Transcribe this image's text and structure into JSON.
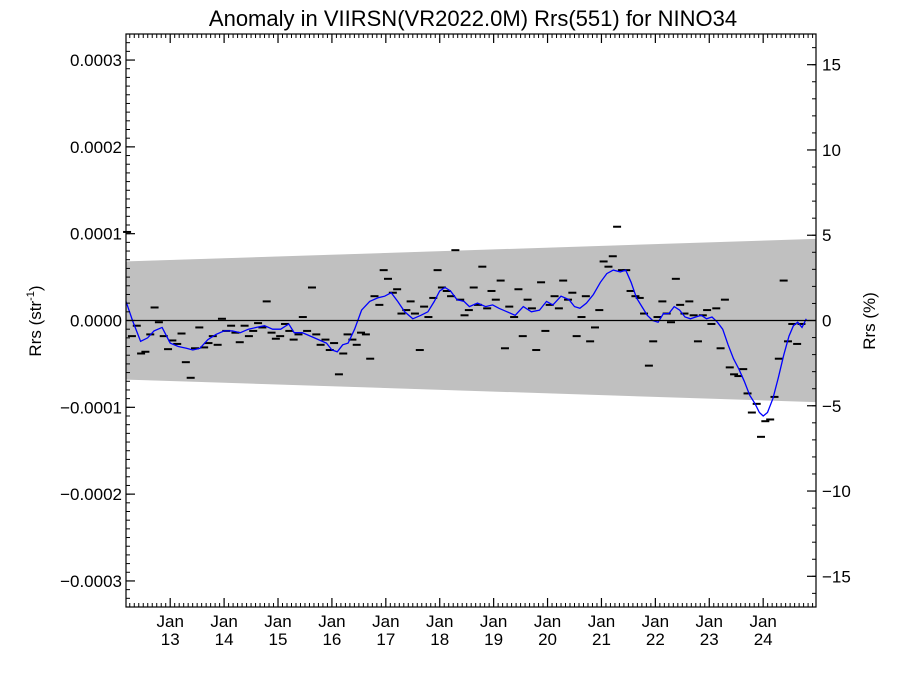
{
  "chart_data": {
    "type": "scatter",
    "title": "Anomaly in VIIRSN(VR2022.0M) Rrs(551) for NINO34",
    "ylabel_left": "Rrs (str",
    "ylabel_left_sup": "-1",
    "ylabel_left_tail": ")",
    "ylabel_right": "Rrs (%)",
    "ylim": [
      -0.00033,
      0.00033
    ],
    "y2lim": [
      -16.8,
      16.8
    ],
    "xlim": [
      2012.18,
      2024.98
    ],
    "yticks": [
      {
        "v": 0.0003,
        "label": "0.0003"
      },
      {
        "v": 0.0002,
        "label": "0.0002"
      },
      {
        "v": 0.0001,
        "label": "0.0001"
      },
      {
        "v": 0.0,
        "label": "0.0000"
      },
      {
        "v": -0.0001,
        "label": "−0.0001"
      },
      {
        "v": -0.0002,
        "label": "−0.0002"
      },
      {
        "v": -0.0003,
        "label": "−0.0003"
      }
    ],
    "y2ticks": [
      {
        "v": 15,
        "label": "15"
      },
      {
        "v": 10,
        "label": "10"
      },
      {
        "v": 5,
        "label": "5"
      },
      {
        "v": 0,
        "label": "0"
      },
      {
        "v": -5,
        "label": "−5"
      },
      {
        "v": -10,
        "label": "−10"
      },
      {
        "v": -15,
        "label": "−15"
      }
    ],
    "xticks": [
      {
        "v": 2013,
        "top": "Jan",
        "bottom": "13"
      },
      {
        "v": 2014,
        "top": "Jan",
        "bottom": "14"
      },
      {
        "v": 2015,
        "top": "Jan",
        "bottom": "15"
      },
      {
        "v": 2016,
        "top": "Jan",
        "bottom": "16"
      },
      {
        "v": 2017,
        "top": "Jan",
        "bottom": "17"
      },
      {
        "v": 2018,
        "top": "Jan",
        "bottom": "18"
      },
      {
        "v": 2019,
        "top": "Jan",
        "bottom": "19"
      },
      {
        "v": 2020,
        "top": "Jan",
        "bottom": "20"
      },
      {
        "v": 2021,
        "top": "Jan",
        "bottom": "21"
      },
      {
        "v": 2022,
        "top": "Jan",
        "bottom": "22"
      },
      {
        "v": 2023,
        "top": "Jan",
        "bottom": "23"
      },
      {
        "v": 2024,
        "top": "Jan",
        "bottom": "24"
      }
    ],
    "band": {
      "color": "#c0c0c0",
      "x": [
        2012.18,
        2024.98
      ],
      "upper": [
        6.8e-05,
        9.4e-05
      ],
      "lower": [
        -6.8e-05,
        -9.4e-05
      ]
    },
    "zero_line": 0,
    "points": [
      [
        2012.2,
        0.000102
      ],
      [
        2012.29,
        -1.8e-05
      ],
      [
        2012.38,
        -6e-06
      ],
      [
        2012.46,
        -3.8e-05
      ],
      [
        2012.54,
        -3.6e-05
      ],
      [
        2012.63,
        -1.6e-05
      ],
      [
        2012.71,
        1.5e-05
      ],
      [
        2012.79,
        -2e-06
      ],
      [
        2012.88,
        -1.8e-05
      ],
      [
        2012.96,
        -3.3e-05
      ],
      [
        2013.04,
        -2.3e-05
      ],
      [
        2013.13,
        -2.7e-05
      ],
      [
        2013.21,
        -1.5e-05
      ],
      [
        2013.29,
        -4.8e-05
      ],
      [
        2013.38,
        -6.6e-05
      ],
      [
        2013.46,
        -3.2e-05
      ],
      [
        2013.54,
        -8e-06
      ],
      [
        2013.63,
        -3.1e-05
      ],
      [
        2013.71,
        -2.6e-05
      ],
      [
        2013.79,
        -1.8e-05
      ],
      [
        2013.88,
        -2.8e-05
      ],
      [
        2013.96,
        2e-06
      ],
      [
        2014.04,
        -1.2e-05
      ],
      [
        2014.13,
        -6e-06
      ],
      [
        2014.21,
        -1.4e-05
      ],
      [
        2014.29,
        -2.5e-05
      ],
      [
        2014.38,
        -6e-06
      ],
      [
        2014.46,
        -1.8e-05
      ],
      [
        2014.54,
        -1.2e-05
      ],
      [
        2014.63,
        -3e-06
      ],
      [
        2014.71,
        -8e-06
      ],
      [
        2014.79,
        2.2e-05
      ],
      [
        2014.88,
        -1.4e-05
      ],
      [
        2014.96,
        -2.1e-05
      ],
      [
        2015.04,
        -1.8e-05
      ],
      [
        2015.13,
        -4e-06
      ],
      [
        2015.21,
        -1.2e-05
      ],
      [
        2015.29,
        -2.2e-05
      ],
      [
        2015.38,
        -1.6e-05
      ],
      [
        2015.46,
        4e-06
      ],
      [
        2015.54,
        -1.2e-05
      ],
      [
        2015.63,
        3.8e-05
      ],
      [
        2015.71,
        -1.6e-05
      ],
      [
        2015.79,
        -2.8e-05
      ],
      [
        2015.88,
        -2.2e-05
      ],
      [
        2015.96,
        -3.4e-05
      ],
      [
        2016.04,
        -2.6e-05
      ],
      [
        2016.13,
        -6.2e-05
      ],
      [
        2016.21,
        -3.8e-05
      ],
      [
        2016.29,
        -1.6e-05
      ],
      [
        2016.38,
        -2.2e-05
      ],
      [
        2016.46,
        -2.8e-05
      ],
      [
        2016.54,
        -1.4e-05
      ],
      [
        2016.63,
        -1.6e-05
      ],
      [
        2016.71,
        -4.4e-05
      ],
      [
        2016.79,
        2.8e-05
      ],
      [
        2016.88,
        1.8e-05
      ],
      [
        2016.96,
        5.8e-05
      ],
      [
        2017.04,
        4.8e-05
      ],
      [
        2017.13,
        3.2e-05
      ],
      [
        2017.21,
        3.6e-05
      ],
      [
        2017.29,
        8e-06
      ],
      [
        2017.38,
        1.2e-05
      ],
      [
        2017.46,
        2.2e-05
      ],
      [
        2017.54,
        8e-06
      ],
      [
        2017.63,
        -3.4e-05
      ],
      [
        2017.71,
        1.6e-05
      ],
      [
        2017.79,
        4e-06
      ],
      [
        2017.88,
        2.6e-05
      ],
      [
        2017.96,
        5.8e-05
      ],
      [
        2018.04,
        3.8e-05
      ],
      [
        2018.13,
        3.4e-05
      ],
      [
        2018.21,
        2.8e-05
      ],
      [
        2018.29,
        8.1e-05
      ],
      [
        2018.38,
        2.4e-05
      ],
      [
        2018.46,
        6e-06
      ],
      [
        2018.54,
        1.2e-05
      ],
      [
        2018.63,
        3.8e-05
      ],
      [
        2018.71,
        1.8e-05
      ],
      [
        2018.79,
        6.2e-05
      ],
      [
        2018.88,
        1.4e-05
      ],
      [
        2018.96,
        3.4e-05
      ],
      [
        2019.04,
        2.4e-05
      ],
      [
        2019.13,
        4.6e-05
      ],
      [
        2019.21,
        -3.2e-05
      ],
      [
        2019.29,
        1.6e-05
      ],
      [
        2019.38,
        4e-06
      ],
      [
        2019.46,
        3.6e-05
      ],
      [
        2019.54,
        -1.8e-05
      ],
      [
        2019.63,
        2.4e-05
      ],
      [
        2019.71,
        1.4e-05
      ],
      [
        2019.79,
        -3.4e-05
      ],
      [
        2019.88,
        4.4e-05
      ],
      [
        2019.96,
        -1.2e-05
      ],
      [
        2020.04,
        1.8e-05
      ],
      [
        2020.13,
        2.8e-05
      ],
      [
        2020.21,
        1.4e-05
      ],
      [
        2020.29,
        4.6e-05
      ],
      [
        2020.38,
        2.4e-05
      ],
      [
        2020.46,
        3.2e-05
      ],
      [
        2020.54,
        -1.8e-05
      ],
      [
        2020.63,
        4e-06
      ],
      [
        2020.71,
        2.8e-05
      ],
      [
        2020.79,
        -2.4e-05
      ],
      [
        2020.88,
        -8e-06
      ],
      [
        2020.96,
        1.2e-05
      ],
      [
        2021.04,
        6.8e-05
      ],
      [
        2021.13,
        6.2e-05
      ],
      [
        2021.21,
        7.4e-05
      ],
      [
        2021.29,
        0.000108
      ],
      [
        2021.38,
        5.8e-05
      ],
      [
        2021.46,
        5.8e-05
      ],
      [
        2021.54,
        3.4e-05
      ],
      [
        2021.63,
        2.8e-05
      ],
      [
        2021.71,
        2.6e-05
      ],
      [
        2021.79,
        8e-06
      ],
      [
        2021.88,
        -5.2e-05
      ],
      [
        2021.96,
        -2.4e-05
      ],
      [
        2022.04,
        4e-06
      ],
      [
        2022.13,
        2.2e-05
      ],
      [
        2022.21,
        8e-06
      ],
      [
        2022.29,
        -2e-06
      ],
      [
        2022.38,
        4.8e-05
      ],
      [
        2022.46,
        1.8e-05
      ],
      [
        2022.54,
        8e-06
      ],
      [
        2022.63,
        2.2e-05
      ],
      [
        2022.71,
        6e-06
      ],
      [
        2022.79,
        -2.4e-05
      ],
      [
        2022.88,
        6e-06
      ],
      [
        2022.96,
        1.2e-05
      ],
      [
        2023.04,
        -4e-06
      ],
      [
        2023.13,
        1.4e-05
      ],
      [
        2023.21,
        -3.2e-05
      ],
      [
        2023.29,
        2.4e-05
      ],
      [
        2023.38,
        -5.4e-05
      ],
      [
        2023.46,
        -6.2e-05
      ],
      [
        2023.54,
        -6.4e-05
      ],
      [
        2023.63,
        -5.6e-05
      ],
      [
        2023.71,
        -8.4e-05
      ],
      [
        2023.79,
        -0.000106
      ],
      [
        2023.88,
        -9.6e-05
      ],
      [
        2023.96,
        -0.000134
      ],
      [
        2024.04,
        -0.000116
      ],
      [
        2024.13,
        -0.000114
      ],
      [
        2024.21,
        -8.8e-05
      ],
      [
        2024.29,
        -4.4e-05
      ],
      [
        2024.38,
        4.6e-05
      ],
      [
        2024.46,
        -2.4e-05
      ],
      [
        2024.54,
        -4e-06
      ],
      [
        2024.63,
        -2.7e-05
      ],
      [
        2024.71,
        -4e-06
      ]
    ],
    "smooth_color": "#0000ff",
    "smooth": [
      [
        2012.18,
        2.2e-05
      ],
      [
        2012.3,
        0.0
      ],
      [
        2012.45,
        -2.4e-05
      ],
      [
        2012.58,
        -2e-05
      ],
      [
        2012.7,
        -1.2e-05
      ],
      [
        2012.85,
        -8e-06
      ],
      [
        2013.0,
        -2.6e-05
      ],
      [
        2013.15,
        -3e-05
      ],
      [
        2013.3,
        -3.2e-05
      ],
      [
        2013.42,
        -3.4e-05
      ],
      [
        2013.55,
        -3.2e-05
      ],
      [
        2013.7,
        -2.2e-05
      ],
      [
        2013.85,
        -1.6e-05
      ],
      [
        2014.0,
        -1.2e-05
      ],
      [
        2014.15,
        -1.2e-05
      ],
      [
        2014.3,
        -1.4e-05
      ],
      [
        2014.45,
        -1e-05
      ],
      [
        2014.6,
        -8e-06
      ],
      [
        2014.75,
        -6e-06
      ],
      [
        2014.9,
        -1e-05
      ],
      [
        2015.05,
        -1e-05
      ],
      [
        2015.2,
        -4e-06
      ],
      [
        2015.3,
        -1.4e-05
      ],
      [
        2015.45,
        -1.4e-05
      ],
      [
        2015.6,
        -1.8e-05
      ],
      [
        2015.75,
        -2.2e-05
      ],
      [
        2015.9,
        -2.6e-05
      ],
      [
        2016.0,
        -3.4e-05
      ],
      [
        2016.1,
        -3.6e-05
      ],
      [
        2016.2,
        -2.8e-05
      ],
      [
        2016.3,
        -2.6e-05
      ],
      [
        2016.42,
        -1e-05
      ],
      [
        2016.55,
        1.2e-05
      ],
      [
        2016.7,
        2.2e-05
      ],
      [
        2016.85,
        2.6e-05
      ],
      [
        2016.98,
        2.8e-05
      ],
      [
        2017.1,
        3.2e-05
      ],
      [
        2017.22,
        2.2e-05
      ],
      [
        2017.35,
        1e-05
      ],
      [
        2017.5,
        2e-06
      ],
      [
        2017.65,
        6e-06
      ],
      [
        2017.78,
        1e-05
      ],
      [
        2017.9,
        2.2e-05
      ],
      [
        2018.0,
        3.4e-05
      ],
      [
        2018.1,
        3.8e-05
      ],
      [
        2018.2,
        3.4e-05
      ],
      [
        2018.32,
        2.4e-05
      ],
      [
        2018.45,
        2.2e-05
      ],
      [
        2018.55,
        1.6e-05
      ],
      [
        2018.7,
        2e-05
      ],
      [
        2018.85,
        1.6e-05
      ],
      [
        2018.98,
        1.8e-05
      ],
      [
        2019.1,
        1.4e-05
      ],
      [
        2019.25,
        1e-05
      ],
      [
        2019.4,
        6e-06
      ],
      [
        2019.55,
        1.6e-05
      ],
      [
        2019.7,
        1e-05
      ],
      [
        2019.85,
        1.2e-05
      ],
      [
        2019.98,
        2.2e-05
      ],
      [
        2020.1,
        1.8e-05
      ],
      [
        2020.25,
        2.8e-05
      ],
      [
        2020.4,
        2.4e-05
      ],
      [
        2020.5,
        1.6e-05
      ],
      [
        2020.6,
        1.4e-05
      ],
      [
        2020.72,
        2e-05
      ],
      [
        2020.85,
        3e-05
      ],
      [
        2020.98,
        4.4e-05
      ],
      [
        2021.1,
        5.4e-05
      ],
      [
        2021.22,
        5.8e-05
      ],
      [
        2021.35,
        5.6e-05
      ],
      [
        2021.45,
        5.8e-05
      ],
      [
        2021.55,
        4.4e-05
      ],
      [
        2021.65,
        2.6e-05
      ],
      [
        2021.75,
        1.6e-05
      ],
      [
        2021.85,
        6e-06
      ],
      [
        2021.95,
        0.0
      ],
      [
        2022.05,
        -2e-06
      ],
      [
        2022.15,
        8e-06
      ],
      [
        2022.25,
        8e-06
      ],
      [
        2022.35,
        1.6e-05
      ],
      [
        2022.45,
        1.2e-05
      ],
      [
        2022.55,
        4e-06
      ],
      [
        2022.65,
        2e-06
      ],
      [
        2022.75,
        4e-06
      ],
      [
        2022.85,
        6e-06
      ],
      [
        2022.95,
        2e-06
      ],
      [
        2023.05,
        4e-06
      ],
      [
        2023.15,
        -2e-06
      ],
      [
        2023.25,
        -1e-05
      ],
      [
        2023.35,
        -2.8e-05
      ],
      [
        2023.45,
        -4.4e-05
      ],
      [
        2023.55,
        -5.6e-05
      ],
      [
        2023.65,
        -7e-05
      ],
      [
        2023.75,
        -8.6e-05
      ],
      [
        2023.85,
        -9.6e-05
      ],
      [
        2023.93,
        -0.000106
      ],
      [
        2024.0,
        -0.00011
      ],
      [
        2024.08,
        -0.000106
      ],
      [
        2024.18,
        -9e-05
      ],
      [
        2024.28,
        -6.6e-05
      ],
      [
        2024.38,
        -4e-05
      ],
      [
        2024.48,
        -1.8e-05
      ],
      [
        2024.56,
        -6e-06
      ],
      [
        2024.64,
        -2e-06
      ],
      [
        2024.72,
        -8e-06
      ],
      [
        2024.8,
        2e-06
      ]
    ]
  }
}
